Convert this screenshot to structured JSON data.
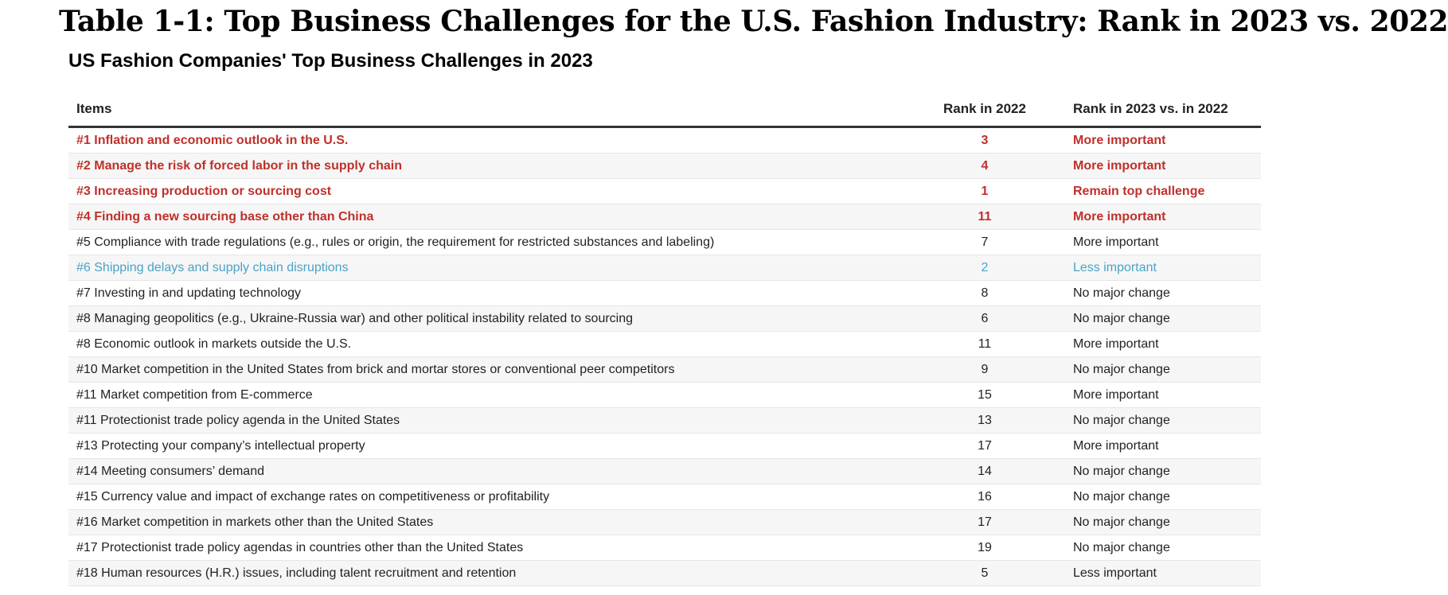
{
  "title": "Table 1-1: Top Business Challenges for the U.S. Fashion Industry: Rank in 2023 vs. 2022",
  "subtitle": "US Fashion Companies' Top Business Challenges in 2023",
  "colors": {
    "highlight": "#c0302a",
    "less_important": "#4aa3c8",
    "normal": "#222222"
  },
  "chart_data": {
    "type": "table",
    "columns": [
      "Items",
      "Rank in 2022",
      "Rank in 2023 vs. in 2022"
    ],
    "rows": [
      {
        "item": "#1 Inflation and economic outlook in the U.S.",
        "rank_2022": "3",
        "change": "More important",
        "style": "highlight"
      },
      {
        "item": "#2 Manage the risk of forced labor in the supply chain",
        "rank_2022": "4",
        "change": "More important",
        "style": "highlight"
      },
      {
        "item": "#3 Increasing production or sourcing cost",
        "rank_2022": "1",
        "change": "Remain top challenge",
        "style": "highlight"
      },
      {
        "item": "#4 Finding a new sourcing base other than China",
        "rank_2022": "11",
        "change": "More important",
        "style": "highlight"
      },
      {
        "item": "#5 Compliance with trade regulations (e.g., rules or origin, the requirement for restricted substances and labeling)",
        "rank_2022": "7",
        "change": "More important",
        "style": "normal"
      },
      {
        "item": "#6 Shipping delays and supply chain disruptions",
        "rank_2022": "2",
        "change": "Less important",
        "style": "less"
      },
      {
        "item": "#7 Investing in and updating technology",
        "rank_2022": "8",
        "change": "No major change",
        "style": "normal"
      },
      {
        "item": "#8 Managing geopolitics (e.g., Ukraine-Russia war) and other political instability related to sourcing",
        "rank_2022": "6",
        "change": "No major change",
        "style": "normal"
      },
      {
        "item": "#8 Economic outlook in markets outside the U.S.",
        "rank_2022": "11",
        "change": "More important",
        "style": "normal"
      },
      {
        "item": "#10 Market competition in the United States from brick and mortar stores or conventional peer competitors",
        "rank_2022": "9",
        "change": "No major change",
        "style": "normal"
      },
      {
        "item": "#11 Market competition from E-commerce",
        "rank_2022": "15",
        "change": "More important",
        "style": "normal"
      },
      {
        "item": "#11 Protectionist trade policy agenda in the United States",
        "rank_2022": "13",
        "change": "No major change",
        "style": "normal"
      },
      {
        "item": "#13 Protecting your company’s intellectual property",
        "rank_2022": "17",
        "change": "More important",
        "style": "normal"
      },
      {
        "item": "#14 Meeting consumers’ demand",
        "rank_2022": "14",
        "change": "No major change",
        "style": "normal"
      },
      {
        "item": "#15 Currency value and impact of exchange rates on competitiveness or profitability",
        "rank_2022": "16",
        "change": "No major change",
        "style": "normal"
      },
      {
        "item": "#16 Market competition in markets other than the United States",
        "rank_2022": "17",
        "change": "No major change",
        "style": "normal"
      },
      {
        "item": "#17 Protectionist trade policy agendas in countries other than the United States",
        "rank_2022": "19",
        "change": "No major change",
        "style": "normal"
      },
      {
        "item": "#18 Human resources (H.R.) issues, including talent recruitment and retention",
        "rank_2022": "5",
        "change": "Less important",
        "style": "normal"
      }
    ]
  }
}
